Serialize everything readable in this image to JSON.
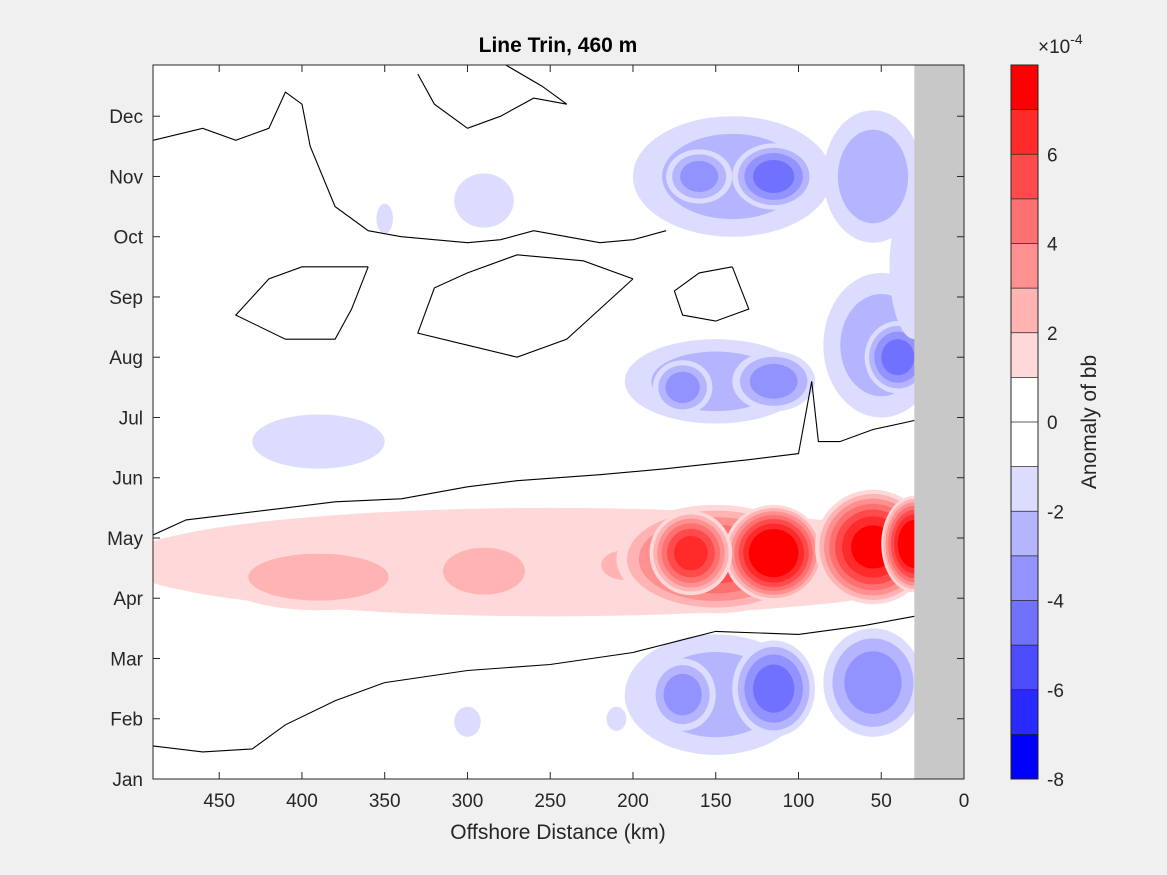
{
  "chart_data": {
    "type": "heatmap",
    "title": "Line Trin, 460 m",
    "xlabel": "Offshore Distance (km)",
    "ylabel": "",
    "x_reversed": true,
    "xlim": [
      0,
      490
    ],
    "x_ticks": [
      450,
      400,
      350,
      300,
      250,
      200,
      150,
      100,
      50,
      0
    ],
    "y_ticks": [
      "Jan",
      "Feb",
      "Mar",
      "Apr",
      "May",
      "Jun",
      "Jul",
      "Aug",
      "Sep",
      "Oct",
      "Nov",
      "Dec"
    ],
    "no_data_region_x": [
      0,
      30
    ],
    "colorbar": {
      "label": "Anomaly of bb",
      "exponent_label": "×10",
      "exponent_power": "-4",
      "clim": [
        -8,
        8
      ],
      "tick_labels": [
        "6",
        "4",
        "2",
        "0",
        "-2",
        "-4",
        "-6",
        "-8"
      ],
      "tick_values": [
        6,
        4,
        2,
        0,
        -2,
        -4,
        -6,
        -8
      ],
      "colors_high_to_low": [
        "#ff0000",
        "#ff2a2a",
        "#ff4b4b",
        "#ff7171",
        "#ff9090",
        "#ffb3b3",
        "#ffd9d9",
        "#ffffff",
        "#ffffff",
        "#dcdcff",
        "#b5b5ff",
        "#9393ff",
        "#7171ff",
        "#4b4bff",
        "#2a2aff",
        "#0000ff"
      ]
    },
    "features": [
      {
        "name": "spring positive anomaly",
        "months": "Apr-May",
        "x_range_km": [
          30,
          490
        ],
        "peak_value": 8,
        "peak_x_km": 115
      },
      {
        "name": "winter negative anomaly",
        "months": "Jan-Mar",
        "x_range_km": [
          30,
          200
        ],
        "peak_value": -4
      },
      {
        "name": "summer negative anomaly",
        "months": "Jul-Aug",
        "x_range_km": [
          30,
          200
        ],
        "peak_value": -4
      },
      {
        "name": "autumn negative anomaly",
        "months": "Oct-Dec",
        "x_range_km": [
          30,
          200
        ],
        "peak_value": -4
      }
    ]
  }
}
